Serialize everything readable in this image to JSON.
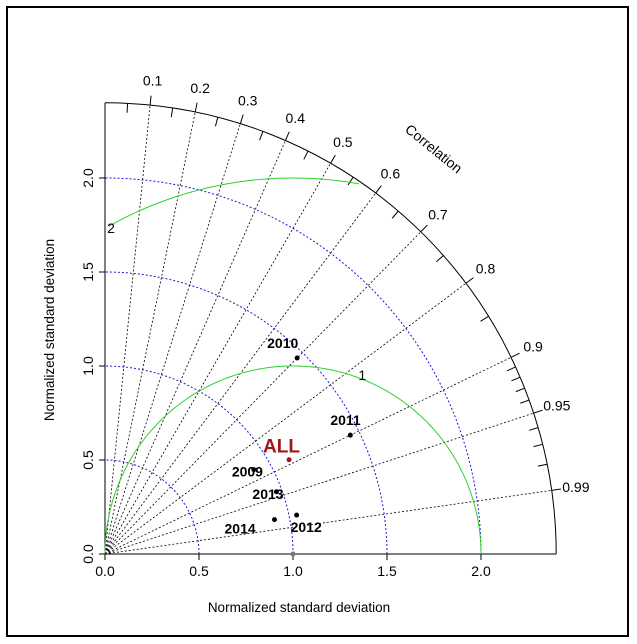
{
  "chart_data": {
    "type": "scatter",
    "subtype": "taylor-diagram",
    "xlabel": "Normalized standard deviation",
    "ylabel": "Normalized standard deviation",
    "correlation_label": "Correlation",
    "sd_max": 2.4,
    "sd_ticks": [
      "0.0",
      "0.5",
      "1.0",
      "1.5",
      "2.0"
    ],
    "correlation_ticks": [
      "0.1",
      "0.2",
      "0.3",
      "0.4",
      "0.5",
      "0.6",
      "0.7",
      "0.8",
      "0.9",
      "0.95",
      "0.99"
    ],
    "sd_arcs": [
      0.5,
      1.0,
      1.5,
      2.0
    ],
    "rms_arcs": [
      1,
      2
    ],
    "rms_arc_labels": [
      "1",
      "2"
    ],
    "points": [
      {
        "label": "2010",
        "sd": 1.46,
        "corr": 0.7
      },
      {
        "label": "2011",
        "sd": 1.45,
        "corr": 0.9
      },
      {
        "label": "ALL",
        "sd": 1.1,
        "corr": 0.89
      },
      {
        "label": "2009",
        "sd": 0.91,
        "corr": 0.87
      },
      {
        "label": "2013",
        "sd": 0.97,
        "corr": 0.94
      },
      {
        "label": "2012",
        "sd": 1.04,
        "corr": 0.98
      },
      {
        "label": "2014",
        "sd": 0.92,
        "corr": 0.98
      }
    ]
  }
}
